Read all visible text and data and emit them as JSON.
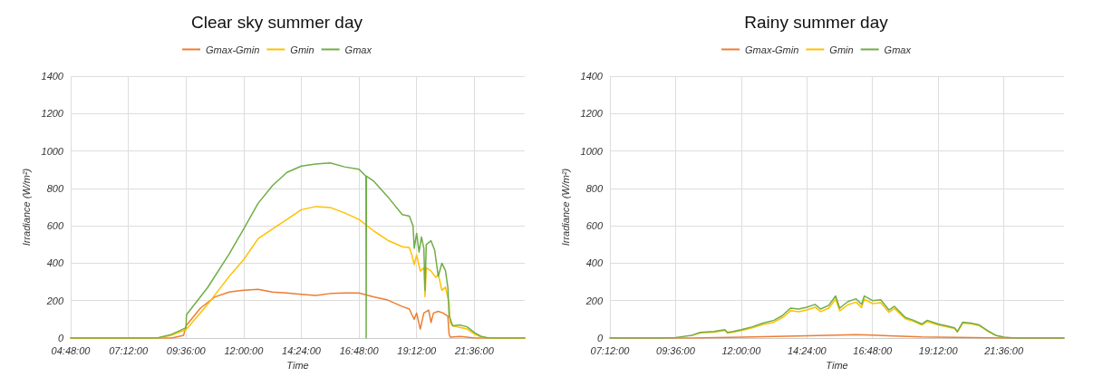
{
  "chart_data": [
    {
      "type": "line",
      "title": "Clear sky summer day",
      "xlabel": "Time",
      "ylabel": "Irradiance (W/m²)",
      "legend": "top",
      "grid": true,
      "marker": "none",
      "line_style": "solid",
      "xlim": [
        4.8,
        23.7
      ],
      "ylim": [
        0,
        1400
      ],
      "yticks": [
        0,
        200,
        400,
        600,
        800,
        1000,
        1200,
        1400
      ],
      "xticks": [
        {
          "value": 4.8,
          "label": "04:48:00"
        },
        {
          "value": 7.2,
          "label": "07:12:00"
        },
        {
          "value": 9.6,
          "label": "09:36:00"
        },
        {
          "value": 12,
          "label": "12:00:00"
        },
        {
          "value": 14.4,
          "label": "14:24:00"
        },
        {
          "value": 16.8,
          "label": "16:48:00"
        },
        {
          "value": 19.2,
          "label": "19:12:00"
        },
        {
          "value": 21.6,
          "label": "21:36:00"
        }
      ],
      "series": [
        {
          "name": "Gmax-Gmin",
          "color": "#ed7d31",
          "x": [
            4.8,
            9.0,
            9.5,
            9.6,
            10.2,
            10.8,
            11.4,
            12.0,
            12.6,
            13.2,
            13.8,
            14.4,
            15.0,
            15.6,
            16.2,
            16.8,
            17.4,
            18.0,
            18.6,
            18.9,
            19.0,
            19.1,
            19.2,
            19.35,
            19.5,
            19.7,
            19.8,
            19.9,
            20.1,
            20.3,
            20.5,
            20.55,
            20.6,
            21.0,
            21.3,
            21.6,
            23.7
          ],
          "values": [
            0,
            0,
            15,
            65,
            160,
            220,
            246,
            255,
            260,
            246,
            241,
            234,
            228,
            238,
            241,
            241,
            220,
            203,
            169,
            155,
            126,
            100,
            134,
            48,
            134,
            150,
            83,
            134,
            143,
            134,
            117,
            22,
            5,
            9,
            5,
            0,
            0
          ]
        },
        {
          "name": "Gmin",
          "color": "#ffc000",
          "x": [
            4.8,
            8.4,
            9.0,
            9.6,
            10.5,
            11.4,
            12.0,
            12.6,
            13.2,
            13.8,
            14.4,
            15.0,
            15.6,
            16.2,
            16.8,
            17.4,
            18.0,
            18.6,
            18.9,
            19.0,
            19.1,
            19.2,
            19.35,
            19.5,
            19.55,
            19.6,
            19.8,
            20.0,
            20.1,
            20.25,
            20.4,
            20.55,
            20.6,
            20.7,
            21.0,
            21.3,
            21.6,
            21.9,
            22.2,
            23.7
          ],
          "values": [
            0,
            0,
            15,
            45,
            180,
            330,
            419,
            531,
            583,
            634,
            686,
            703,
            698,
            669,
            634,
            574,
            522,
            488,
            483,
            445,
            393,
            445,
            358,
            376,
            220,
            376,
            358,
            324,
            341,
            255,
            272,
            186,
            83,
            65,
            57,
            48,
            22,
            5,
            0,
            0
          ]
        },
        {
          "name": "Gmax",
          "color": "#70ad47",
          "x": [
            4.8,
            8.4,
            9.0,
            9.6,
            9.62,
            10.5,
            11.4,
            12.0,
            12.6,
            13.2,
            13.8,
            14.4,
            15.0,
            15.6,
            16.2,
            16.8,
            17.05,
            17.09,
            17.1,
            17.11,
            17.4,
            18.0,
            18.6,
            18.9,
            19.05,
            19.1,
            19.2,
            19.3,
            19.4,
            19.5,
            19.55,
            19.6,
            19.8,
            19.95,
            20.1,
            20.25,
            20.4,
            20.5,
            20.55,
            20.7,
            21.0,
            21.3,
            21.6,
            21.9,
            22.2,
            23.7
          ],
          "values": [
            0,
            0,
            20,
            55,
            125,
            270,
            450,
            583,
            720,
            815,
            885,
            919,
            930,
            936,
            915,
            902,
            870,
            865,
            0,
            865,
            840,
            755,
            660,
            652,
            600,
            480,
            560,
            460,
            540,
            480,
            255,
            500,
            520,
            470,
            330,
            400,
            360,
            270,
            120,
            65,
            70,
            60,
            30,
            8,
            0,
            0
          ]
        }
      ]
    },
    {
      "type": "line",
      "title": "Rainy summer day",
      "xlabel": "Time",
      "ylabel": "Irradiance (W/m²)",
      "legend": "top",
      "grid": true,
      "marker": "none",
      "line_style": "solid",
      "xlim": [
        7.2,
        23.8
      ],
      "ylim": [
        0,
        1400
      ],
      "yticks": [
        0,
        200,
        400,
        600,
        800,
        1000,
        1200,
        1400
      ],
      "xticks": [
        {
          "value": 7.2,
          "label": "07:12:00"
        },
        {
          "value": 9.6,
          "label": "09:36:00"
        },
        {
          "value": 12,
          "label": "12:00:00"
        },
        {
          "value": 14.4,
          "label": "14:24:00"
        },
        {
          "value": 16.8,
          "label": "16:48:00"
        },
        {
          "value": 19.2,
          "label": "19:12:00"
        },
        {
          "value": 21.6,
          "label": "21:36:00"
        }
      ],
      "series": [
        {
          "name": "Gmax-Gmin",
          "color": "#ed7d31",
          "x": [
            7.2,
            10.0,
            12.0,
            13.2,
            14.4,
            15.5,
            16.2,
            16.8,
            17.4,
            18.6,
            19.2,
            20.5,
            21.6,
            23.8
          ],
          "values": [
            0,
            0,
            5,
            8,
            12,
            16,
            18,
            16,
            12,
            6,
            5,
            3,
            0,
            0
          ]
        },
        {
          "name": "Gmin",
          "color": "#ffc000",
          "x": [
            10.2,
            10.5,
            11.0,
            11.4,
            11.5,
            11.7,
            12.0,
            12.4,
            12.8,
            13.2,
            13.5,
            13.8,
            14.1,
            14.4,
            14.7,
            14.9,
            15.2,
            15.45,
            15.6,
            15.9,
            16.2,
            16.4,
            16.5,
            16.8,
            17.1,
            17.4,
            17.6,
            18.0,
            18.3,
            18.6,
            18.8,
            19.2,
            19.5,
            19.8,
            19.9,
            20.1,
            20.4,
            20.7,
            21.0,
            21.3,
            21.6
          ],
          "values": [
            14,
            28,
            32,
            41,
            27,
            31,
            40,
            54,
            72,
            85,
            108,
            146,
            141,
            150,
            165,
            141,
            160,
            208,
            145,
            178,
            192,
            163,
            208,
            184,
            189,
            138,
            158,
            103,
            89,
            70,
            88,
            70,
            61,
            51,
            32,
            80,
            76,
            67,
            38,
            14,
            5
          ]
        },
        {
          "name": "Gmax",
          "color": "#70ad47",
          "x": [
            7.2,
            9.0,
            9.6,
            10.2,
            10.5,
            11.0,
            11.4,
            11.5,
            11.7,
            12.0,
            12.4,
            12.8,
            13.2,
            13.5,
            13.8,
            14.1,
            14.4,
            14.7,
            14.9,
            15.2,
            15.45,
            15.6,
            15.9,
            16.2,
            16.4,
            16.5,
            16.8,
            17.1,
            17.4,
            17.6,
            18.0,
            18.3,
            18.6,
            18.8,
            19.2,
            19.5,
            19.8,
            19.9,
            20.1,
            20.4,
            20.7,
            21.0,
            21.3,
            21.6,
            22.0,
            23.8
          ],
          "values": [
            0,
            0,
            3,
            15,
            30,
            35,
            45,
            30,
            35,
            45,
            60,
            80,
            95,
            120,
            160,
            155,
            165,
            180,
            155,
            175,
            225,
            160,
            195,
            210,
            180,
            225,
            200,
            205,
            150,
            170,
            110,
            95,
            75,
            95,
            75,
            65,
            55,
            35,
            85,
            80,
            70,
            40,
            15,
            5,
            0,
            0
          ]
        }
      ]
    }
  ]
}
